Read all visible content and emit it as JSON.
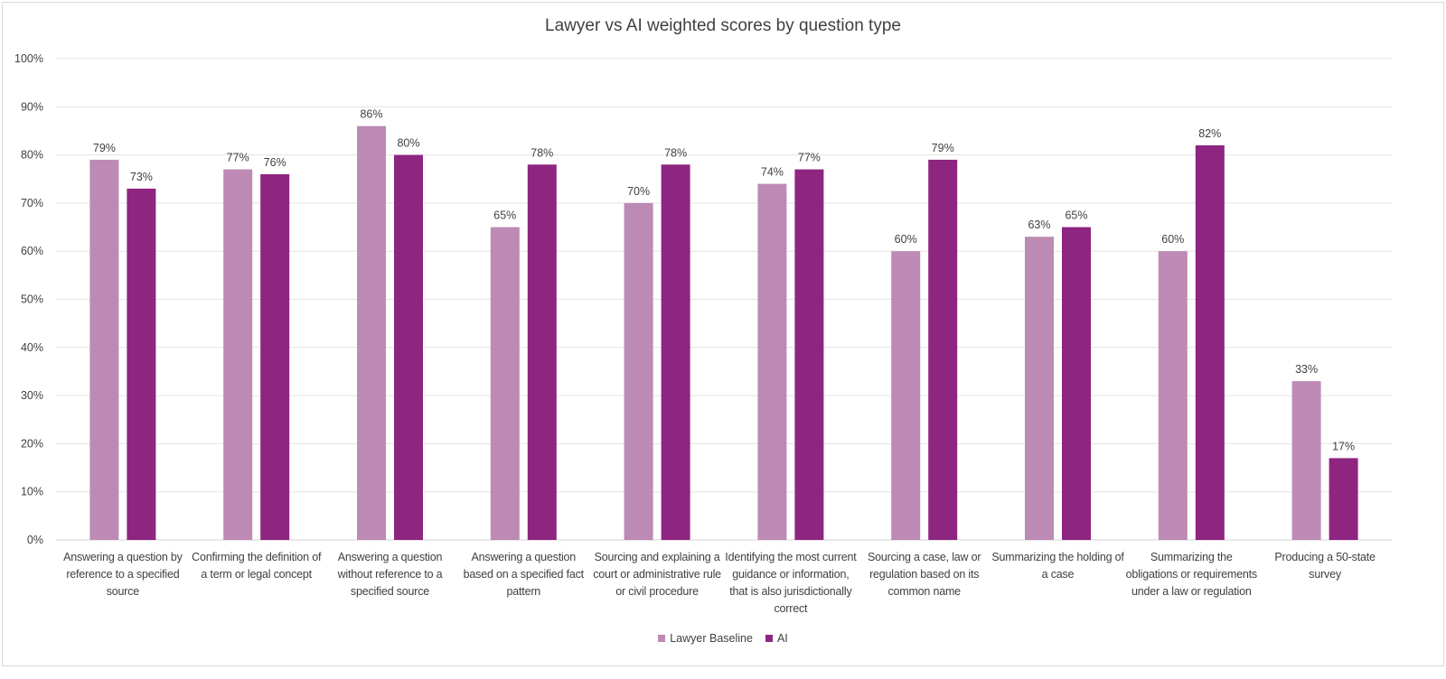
{
  "chart_data": {
    "type": "bar",
    "title": "Lawyer vs AI weighted scores by question type",
    "xlabel": "",
    "ylabel": "",
    "ylim": [
      0,
      100
    ],
    "yticks": [
      "0%",
      "10%",
      "20%",
      "30%",
      "40%",
      "50%",
      "60%",
      "70%",
      "80%",
      "90%",
      "100%"
    ],
    "grid": true,
    "legend_position": "bottom",
    "categories": [
      "Answering a question by reference to a specified source",
      "Confirming the definition of a term or legal concept",
      "Answering a question without reference to a specified source",
      "Answering a question based on a specified fact pattern",
      "Sourcing and explaining a court or administrative rule or civil procedure",
      "Identifying the most current guidance or information, that is also jurisdictionally correct",
      "Sourcing a case, law or regulation based on its common name",
      "Summarizing the holding of a case",
      "Summarizing the obligations or requirements under a law or regulation",
      "Producing a 50-state survey"
    ],
    "series": [
      {
        "name": "Lawyer Baseline",
        "color": "#bc8ab4",
        "values": [
          79,
          77,
          86,
          65,
          70,
          74,
          60,
          63,
          60,
          33
        ],
        "labels": [
          "79%",
          "77%",
          "86%",
          "65%",
          "70%",
          "74%",
          "60%",
          "63%",
          "60%",
          "33%"
        ]
      },
      {
        "name": "AI",
        "color": "#8e2580",
        "values": [
          73,
          76,
          80,
          78,
          78,
          77,
          79,
          65,
          82,
          17
        ],
        "labels": [
          "73%",
          "76%",
          "80%",
          "78%",
          "78%",
          "77%",
          "79%",
          "65%",
          "82%",
          "17%"
        ]
      }
    ]
  }
}
